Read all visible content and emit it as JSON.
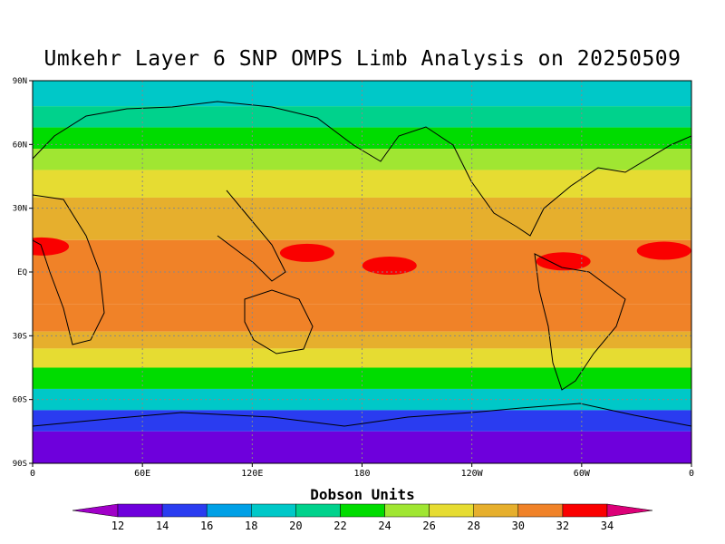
{
  "title": "Umkehr Layer 6 SNP OMPS Limb Analysis on 20250509",
  "colorbar": {
    "label": "Dobson Units",
    "ticks": [
      "12",
      "14",
      "16",
      "18",
      "20",
      "22",
      "24",
      "26",
      "28",
      "30",
      "32",
      "34"
    ],
    "colors": [
      "#a000c8",
      "#6e00dc",
      "#2a3cf0",
      "#00a0e6",
      "#00c8c8",
      "#00d28c",
      "#00dc00",
      "#a0e632",
      "#e6dc32",
      "#e6af2d",
      "#f08228",
      "#fa0000",
      "#dc0078"
    ]
  },
  "chart_data": {
    "type": "heatmap",
    "title": "Umkehr Layer 6 SNP OMPS Limb Analysis on 20250509",
    "unit": "Dobson Units",
    "projection": "cylindrical",
    "xlim": [
      0,
      360
    ],
    "ylim": [
      -90,
      90
    ],
    "x_ticks": [
      "0",
      "60E",
      "120E",
      "180",
      "120W",
      "60W",
      "0"
    ],
    "y_ticks": [
      "90N",
      "60N",
      "30N",
      "EQ",
      "30S",
      "60S",
      "90S"
    ],
    "contour_levels": [
      12,
      14,
      16,
      18,
      20,
      22,
      24,
      26,
      28,
      30,
      32,
      34
    ],
    "zonal_profile": [
      {
        "lat": 90,
        "value": 19
      },
      {
        "lat": 78,
        "value": 21
      },
      {
        "lat": 68,
        "value": 23
      },
      {
        "lat": 58,
        "value": 25
      },
      {
        "lat": 48,
        "value": 27
      },
      {
        "lat": 35,
        "value": 29
      },
      {
        "lat": 15,
        "value": 31
      },
      {
        "lat": 0,
        "value": 31
      },
      {
        "lat": -15,
        "value": 31
      },
      {
        "lat": -28,
        "value": 29
      },
      {
        "lat": -36,
        "value": 27
      },
      {
        "lat": -45,
        "value": 23
      },
      {
        "lat": -55,
        "value": 19
      },
      {
        "lat": -65,
        "value": 15
      },
      {
        "lat": -75,
        "value": 13
      },
      {
        "lat": -90,
        "value": 13
      }
    ],
    "maxima_regions": [
      {
        "lon": 5,
        "lat": 12,
        "value": 33
      },
      {
        "lon": 150,
        "lat": 9,
        "value": 33
      },
      {
        "lon": 195,
        "lat": 3,
        "value": 33
      },
      {
        "lon": 290,
        "lat": 5,
        "value": 33
      },
      {
        "lon": 345,
        "lat": 10,
        "value": 33
      }
    ]
  }
}
